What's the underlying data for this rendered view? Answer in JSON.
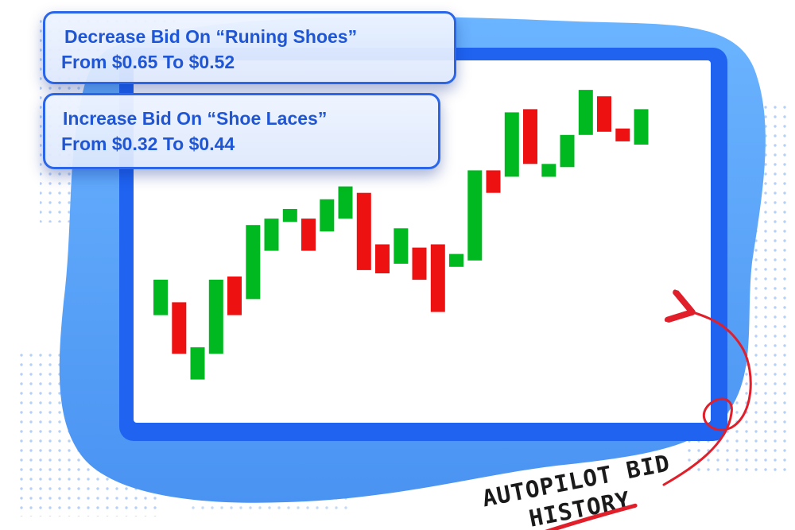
{
  "notifications": [
    {
      "line1": "Decrease Bid On “Runing Shoes”",
      "line2": "From $0.65 To $0.52"
    },
    {
      "line1": "Increase Bid On “Shoe Laces”",
      "line2": "From $0.32 To $0.44"
    }
  ],
  "annotation": {
    "line1": "AUTOPILOT BID",
    "line2": "HISTORY"
  },
  "colors": {
    "up": "#00b81f",
    "down": "#ee1111",
    "frame": "#1f63f0",
    "blob": "#5da6f8",
    "accent": "#e01f2a",
    "notification_text": "#1f56d6"
  },
  "chart_data": {
    "type": "candlestick",
    "title": "",
    "xlabel": "",
    "ylabel": "",
    "grid": false,
    "ylim": [
      0,
      100
    ],
    "candles": [
      {
        "open": 28,
        "close": 39,
        "dir": "up"
      },
      {
        "open": 32,
        "close": 16,
        "dir": "down"
      },
      {
        "open": 8,
        "close": 18,
        "dir": "up"
      },
      {
        "open": 16,
        "close": 39,
        "dir": "up"
      },
      {
        "open": 40,
        "close": 28,
        "dir": "down"
      },
      {
        "open": 33,
        "close": 56,
        "dir": "up"
      },
      {
        "open": 48,
        "close": 58,
        "dir": "up"
      },
      {
        "open": 57,
        "close": 61,
        "dir": "up"
      },
      {
        "open": 58,
        "close": 48,
        "dir": "down"
      },
      {
        "open": 54,
        "close": 64,
        "dir": "up"
      },
      {
        "open": 58,
        "close": 68,
        "dir": "up"
      },
      {
        "open": 66,
        "close": 42,
        "dir": "down"
      },
      {
        "open": 50,
        "close": 41,
        "dir": "down"
      },
      {
        "open": 44,
        "close": 55,
        "dir": "up"
      },
      {
        "open": 49,
        "close": 39,
        "dir": "down"
      },
      {
        "open": 50,
        "close": 29,
        "dir": "down"
      },
      {
        "open": 43,
        "close": 47,
        "dir": "up"
      },
      {
        "open": 45,
        "close": 73,
        "dir": "up"
      },
      {
        "open": 73,
        "close": 66,
        "dir": "down"
      },
      {
        "open": 71,
        "close": 91,
        "dir": "up"
      },
      {
        "open": 92,
        "close": 75,
        "dir": "down"
      },
      {
        "open": 71,
        "close": 75,
        "dir": "up"
      },
      {
        "open": 74,
        "close": 84,
        "dir": "up"
      },
      {
        "open": 84,
        "close": 98,
        "dir": "up"
      },
      {
        "open": 96,
        "close": 85,
        "dir": "down"
      },
      {
        "open": 86,
        "close": 82,
        "dir": "down"
      },
      {
        "open": 81,
        "close": 92,
        "dir": "up"
      }
    ]
  }
}
